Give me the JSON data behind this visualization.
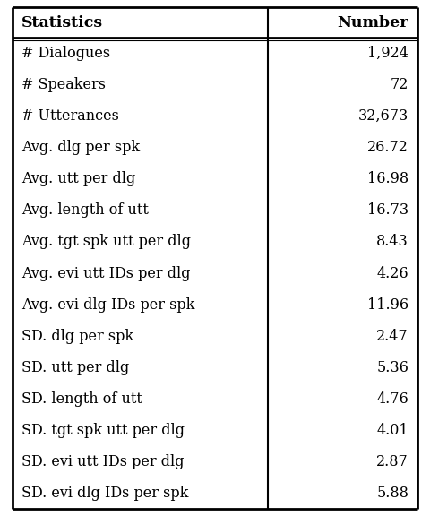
{
  "headers": [
    "Statistics",
    "Number"
  ],
  "rows": [
    [
      "# Dialogues",
      "1,924"
    ],
    [
      "# Speakers",
      "72"
    ],
    [
      "# Utterances",
      "32,673"
    ],
    [
      "Avg. dlg per spk",
      "26.72"
    ],
    [
      "Avg. utt per dlg",
      "16.98"
    ],
    [
      "Avg. length of utt",
      "16.73"
    ],
    [
      "Avg. tgt spk utt per dlg",
      "8.43"
    ],
    [
      "Avg. evi utt IDs per dlg",
      "4.26"
    ],
    [
      "Avg. evi dlg IDs per spk",
      "11.96"
    ],
    [
      "SD. dlg per spk",
      "2.47"
    ],
    [
      "SD. utt per dlg",
      "5.36"
    ],
    [
      "SD. length of utt",
      "4.76"
    ],
    [
      "SD. tgt spk utt per dlg",
      "4.01"
    ],
    [
      "SD. evi utt IDs per dlg",
      "2.87"
    ],
    [
      "SD. evi dlg IDs per spk",
      "5.88"
    ]
  ],
  "col_split": 0.63,
  "header_bg": "#ffffff",
  "header_fg": "#000000",
  "row_bg": "#ffffff",
  "row_fg": "#000000",
  "border_color": "#000000",
  "font_size": 11.5,
  "header_font_size": 12.5
}
